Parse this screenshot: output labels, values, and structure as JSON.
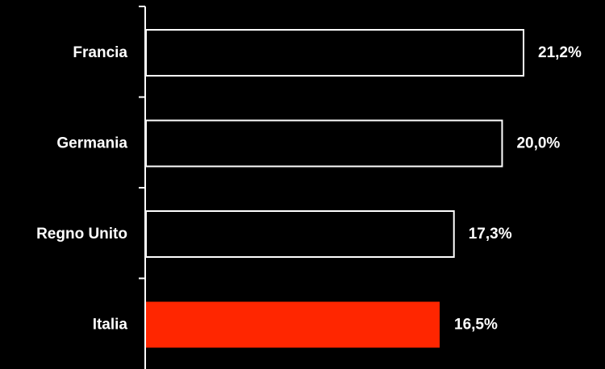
{
  "chart_data": {
    "type": "bar",
    "orientation": "horizontal",
    "categories": [
      "Francia",
      "Germania",
      "Regno Unito",
      "Italia"
    ],
    "values": [
      21.2,
      20.0,
      17.3,
      16.5
    ],
    "value_labels": [
      "21,2%",
      "20,0%",
      "17,3%",
      "16,5%"
    ],
    "unit": "%",
    "title": "",
    "xlabel": "",
    "ylabel": "",
    "xlim": [
      0,
      22
    ],
    "grid": false,
    "legend": "none",
    "colors": {
      "background": "#000000",
      "bar_fill_default": "#000000",
      "bar_outline": "#ffffff",
      "highlight_category": "Italia",
      "highlight_fill": "#ff2600",
      "axis": "#ffffff",
      "text": "#ffffff"
    }
  }
}
